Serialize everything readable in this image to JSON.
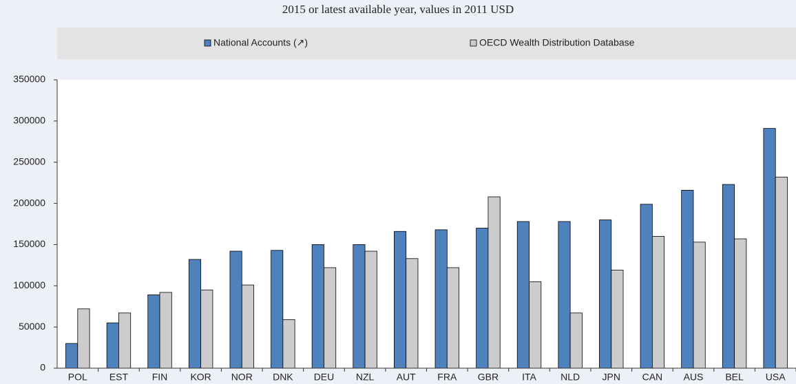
{
  "chart_data": {
    "type": "bar",
    "subtitle": "2015 or latest available year, values in 2011 USD",
    "categories": [
      "POL",
      "EST",
      "FIN",
      "KOR",
      "NOR",
      "DNK",
      "DEU",
      "NZL",
      "AUT",
      "FRA",
      "GBR",
      "ITA",
      "NLD",
      "JPN",
      "CAN",
      "AUS",
      "BEL",
      "USA"
    ],
    "series": [
      {
        "name": "National Accounts (↗)",
        "color": "#4f81bd",
        "values": [
          30000,
          55000,
          89000,
          132000,
          142000,
          143000,
          150000,
          150000,
          166000,
          168000,
          170000,
          178000,
          178000,
          180000,
          199000,
          216000,
          223000,
          291000
        ]
      },
      {
        "name": "OECD Wealth Distribution Database",
        "color": "#cccccc",
        "values": [
          72000,
          67000,
          92000,
          95000,
          101000,
          59000,
          122000,
          142000,
          133000,
          122000,
          208000,
          105000,
          67000,
          119000,
          160000,
          153000,
          157000,
          232000
        ]
      }
    ],
    "ylim": [
      0,
      350000
    ],
    "yticks": [
      0,
      50000,
      100000,
      150000,
      200000,
      250000,
      300000,
      350000
    ],
    "grid": false
  }
}
